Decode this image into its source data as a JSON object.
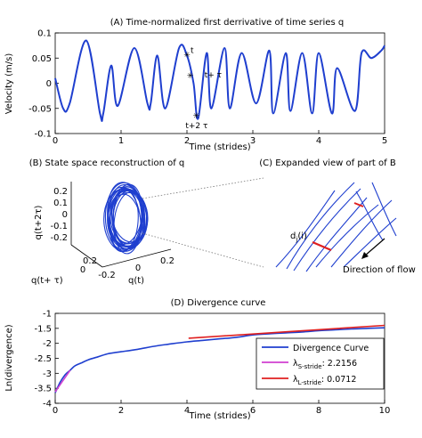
{
  "chart_data": [
    {
      "type": "line",
      "title": "(A) Time-normalized first derrivative of time series q",
      "xlabel": "Time (strides)",
      "ylabel": "Velocity (m/s)",
      "xlim": [
        0,
        5
      ],
      "ylim": [
        -0.1,
        0.1
      ],
      "xticks": [
        "0",
        "1",
        "2",
        "3",
        "4",
        "5"
      ],
      "yticks": [
        "0.1",
        "0.05",
        "0",
        "-0.05",
        "-0.1"
      ],
      "grid": false,
      "series": [
        {
          "color": "#1f3fcf",
          "x": [
            0,
            0.12,
            0.22,
            0.47,
            0.68,
            0.73,
            0.85,
            0.95,
            1.2,
            1.4,
            1.45,
            1.55,
            1.67,
            1.88,
            2.0,
            2.1,
            2.17,
            2.3,
            2.37,
            2.57,
            2.65,
            2.83,
            3.05,
            3.25,
            3.31,
            3.5,
            3.57,
            3.75,
            3.9,
            4.0,
            4.2,
            4.28,
            4.55,
            4.65,
            4.8,
            4.95,
            5.0
          ],
          "y": [
            0.01,
            -0.05,
            -0.04,
            0.085,
            -0.06,
            -0.06,
            0.035,
            -0.045,
            0.07,
            -0.04,
            -0.04,
            0.055,
            -0.05,
            0.07,
            0.055,
            0.0,
            -0.07,
            0.06,
            -0.05,
            0.07,
            -0.05,
            0.06,
            -0.04,
            0.065,
            -0.06,
            0.06,
            -0.055,
            0.06,
            -0.06,
            0.06,
            -0.06,
            0.03,
            -0.055,
            0.06,
            0.05,
            0.065,
            0.075
          ]
        }
      ],
      "annotations": [
        {
          "text": "t",
          "x": 2.0,
          "y": 0.057
        },
        {
          "text": "t+ τ",
          "x": 2.05,
          "y": 0.015
        },
        {
          "text": "t+2 τ",
          "x": 2.14,
          "y": -0.065
        }
      ]
    },
    {
      "type": "scatter",
      "title": "(B) State space reconstruction of q",
      "xlabel": "q(t)",
      "ylabel": "q(t+2τ)",
      "zlabel": "q(t+  τ)",
      "zticks": [
        "0.2",
        "0.1",
        "0",
        "-0.1",
        "-0.2"
      ],
      "xticks": [
        "-0.2",
        "0",
        "0.2"
      ],
      "yticks": [
        "0.2",
        "0"
      ],
      "color": "#1f3fcf"
    },
    {
      "type": "line",
      "title": "(C) Expanded view of part of B",
      "annotations": [
        {
          "text": "d",
          "subscript": "j",
          "suffix": "(i)"
        },
        {
          "text": "Direction of flow"
        }
      ],
      "color": "#1f3fcf"
    },
    {
      "type": "line",
      "title": "(D) Divergence curve",
      "xlabel": "Time (strides)",
      "ylabel": "Ln(divergence)",
      "xlim": [
        0,
        10
      ],
      "ylim": [
        -4,
        -1
      ],
      "xticks": [
        "0",
        "2",
        "4",
        "6",
        "8",
        "10"
      ],
      "yticks": [
        "-1",
        "-1.5",
        "-2",
        "-2.5",
        "-3",
        "-3.5",
        "-4"
      ],
      "grid": false,
      "legend_position": "bottom-right",
      "series": [
        {
          "name": "Divergence Curve",
          "color": "#1f3fcf",
          "x": [
            0,
            0.15,
            0.3,
            0.45,
            0.6,
            0.8,
            1.0,
            1.3,
            1.6,
            2.0,
            2.5,
            3.0,
            3.5,
            4.0,
            4.5,
            5.0,
            5.5,
            6.0,
            6.5,
            7.0,
            7.5,
            8.0,
            8.5,
            9.0,
            9.5,
            10.0
          ],
          "y": [
            -3.65,
            -3.3,
            -3.05,
            -2.9,
            -2.75,
            -2.65,
            -2.55,
            -2.45,
            -2.35,
            -2.28,
            -2.2,
            -2.1,
            -2.02,
            -1.95,
            -1.9,
            -1.85,
            -1.8,
            -1.72,
            -1.68,
            -1.65,
            -1.62,
            -1.58,
            -1.55,
            -1.52,
            -1.5,
            -1.48
          ]
        },
        {
          "name": "λ",
          "subscript": "S-stride",
          "value_text": ": 2.2156",
          "color": "#d040d0",
          "x": [
            0,
            0.45
          ],
          "y": [
            -3.62,
            -2.9
          ]
        },
        {
          "name": "λ",
          "subscript": "L-stride",
          "value_text": ": 0.0712",
          "color": "#e02020",
          "x": [
            4.05,
            10.0
          ],
          "y": [
            -1.83,
            -1.4
          ]
        }
      ]
    }
  ]
}
